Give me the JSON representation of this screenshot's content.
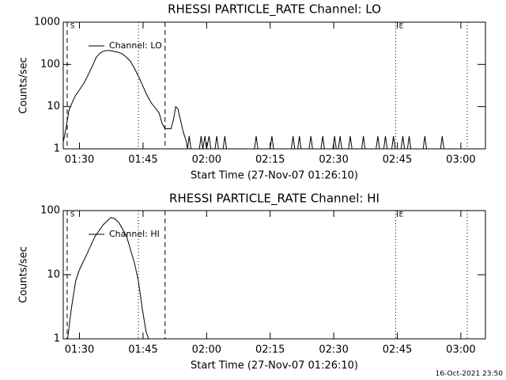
{
  "chart_data": [
    {
      "type": "line",
      "title": "RHESSI PARTICLE_RATE Channel: LO",
      "x_label": "Start Time (27-Nov-07 01:26:10)",
      "y_label": "Counts/sec",
      "log_y": true,
      "xlim": [
        86.17,
        185.8
      ],
      "ylim": [
        1,
        1000
      ],
      "xticks": [
        {
          "value": 90,
          "label": "01:30"
        },
        {
          "value": 105,
          "label": "01:45"
        },
        {
          "value": 120,
          "label": "02:00"
        },
        {
          "value": 135,
          "label": "02:15"
        },
        {
          "value": 150,
          "label": "02:30"
        },
        {
          "value": 165,
          "label": "02:45"
        },
        {
          "value": 180,
          "label": "03:00"
        }
      ],
      "yticks": [
        1,
        10,
        100,
        1000
      ],
      "legend": "upper left",
      "vlines": [
        {
          "x": 87.1,
          "style": "dashed"
        },
        {
          "x": 103.9,
          "style": "dotted"
        },
        {
          "x": 110.2,
          "style": "dashed"
        },
        {
          "x": 164.6,
          "style": "dotted"
        },
        {
          "x": 181.5,
          "style": "dotted"
        }
      ],
      "annotations": [
        {
          "text": "S",
          "x": 87.8
        },
        {
          "text": "E",
          "x": 165.4
        }
      ],
      "series": [
        {
          "name": "Channel: LO",
          "color": "#000000",
          "x": [
            86.2,
            86.8,
            87.5,
            88.2,
            89,
            90,
            91,
            92,
            93,
            94,
            95,
            96,
            97,
            98,
            99,
            100,
            101,
            102,
            103,
            104,
            105,
            106,
            107,
            108,
            108.8,
            109.5,
            110.2,
            111,
            111.6,
            112.2,
            112.7,
            113.2,
            113.8,
            114.5,
            115.2,
            115.5,
            115.9,
            116.3,
            118.3,
            118.7,
            119.1,
            119.6,
            120.0,
            120.6,
            121.0,
            122.0,
            122.4,
            122.8,
            123.9,
            124.3,
            124.7,
            131.3,
            131.7,
            132.1,
            135.0,
            135.4,
            135.8,
            140.0,
            140.4,
            140.8,
            141.5,
            141.9,
            142.3,
            144.2,
            144.6,
            145.0,
            147.0,
            147.4,
            147.8,
            149.8,
            150.2,
            150.6,
            151.1,
            151.5,
            151.9,
            153.5,
            153.9,
            154.3,
            156.6,
            157.0,
            157.4,
            160.0,
            160.4,
            160.8,
            161.8,
            162.2,
            162.6,
            163.7,
            164.1,
            164.5,
            165.9,
            166.3,
            166.7,
            167.4,
            167.8,
            168.2,
            171.1,
            171.5,
            171.9,
            175.2,
            175.6,
            176.0
          ],
          "values": [
            1.5,
            3,
            8,
            12,
            18,
            25,
            35,
            55,
            90,
            150,
            190,
            210,
            215,
            205,
            195,
            180,
            150,
            120,
            80,
            50,
            30,
            18,
            12,
            9,
            7,
            4,
            3,
            3,
            3,
            5,
            10,
            9,
            5,
            2.5,
            1.5,
            1,
            2,
            1,
            1,
            2,
            1,
            2,
            1,
            2,
            1,
            1,
            2,
            1,
            1,
            2,
            1,
            1,
            2,
            1,
            1,
            2,
            1,
            1,
            2,
            1,
            1,
            2,
            1,
            1,
            2,
            1,
            1,
            2,
            1,
            1,
            2,
            1,
            1,
            2,
            1,
            1,
            2,
            1,
            1,
            2,
            1,
            1,
            2,
            1,
            1,
            2,
            1,
            1,
            2,
            1,
            1,
            2,
            1,
            1,
            2,
            1,
            1,
            2,
            1,
            1,
            2,
            1
          ]
        }
      ]
    },
    {
      "type": "line",
      "title": "RHESSI PARTICLE_RATE Channel: HI",
      "x_label": "Start Time (27-Nov-07 01:26:10)",
      "y_label": "Counts/sec",
      "log_y": true,
      "xlim": [
        86.17,
        185.8
      ],
      "ylim": [
        1,
        100
      ],
      "xticks": [
        {
          "value": 90,
          "label": "01:30"
        },
        {
          "value": 105,
          "label": "01:45"
        },
        {
          "value": 120,
          "label": "02:00"
        },
        {
          "value": 135,
          "label": "02:15"
        },
        {
          "value": 150,
          "label": "02:30"
        },
        {
          "value": 165,
          "label": "02:45"
        },
        {
          "value": 180,
          "label": "03:00"
        }
      ],
      "yticks": [
        1,
        10,
        100
      ],
      "legend": "upper left",
      "vlines": [
        {
          "x": 87.1,
          "style": "dashed"
        },
        {
          "x": 103.9,
          "style": "dotted"
        },
        {
          "x": 110.2,
          "style": "dashed"
        },
        {
          "x": 164.6,
          "style": "dotted"
        },
        {
          "x": 181.5,
          "style": "dotted"
        }
      ],
      "annotations": [
        {
          "text": "S",
          "x": 87.8
        },
        {
          "text": "E",
          "x": 165.4
        }
      ],
      "series": [
        {
          "name": "Channel: HI",
          "color": "#000000",
          "x": [
            87.2,
            88.1,
            89.1,
            90,
            91.9,
            93.7,
            95.6,
            97.4,
            98.3,
            99.3,
            101.1,
            103,
            103.9,
            104.8,
            105.7,
            106.3
          ],
          "values": [
            1,
            3,
            8,
            12,
            22,
            40,
            60,
            78,
            75,
            65,
            40,
            15,
            8,
            3,
            1.3,
            1
          ]
        }
      ]
    }
  ],
  "footer": "16-Oct-2021 23:50"
}
